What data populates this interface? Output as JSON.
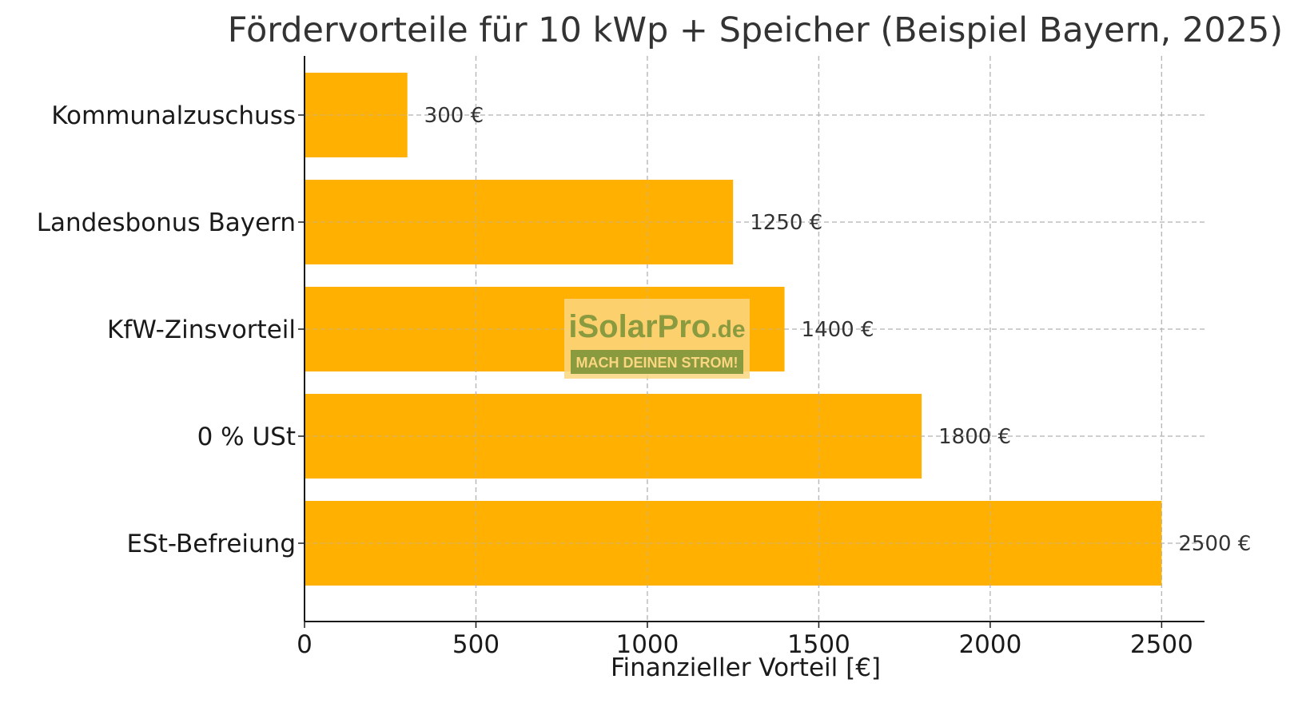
{
  "chart_data": {
    "type": "bar",
    "orientation": "horizontal",
    "title": "Fördervorteile für 10 kWp + Speicher (Beispiel Bayern, 2025)",
    "xlabel": "Finanzieller Vorteil [€]",
    "ylabel": "",
    "categories": [
      "Kommunalzuschuss",
      "Landesbonus Bayern",
      "KfW-Zinsvorteil",
      "0 % USt",
      "ESt-Befreiung"
    ],
    "values": [
      300,
      1250,
      1400,
      1800,
      2500
    ],
    "value_labels": [
      "300 €",
      "1250 €",
      "1400 €",
      "1800 €",
      "2500 €"
    ],
    "xticks": [
      0,
      500,
      1000,
      1500,
      2000,
      2500
    ],
    "xtick_labels": [
      "0",
      "500",
      "1000",
      "1500",
      "2000",
      "2500"
    ],
    "xlim": [
      0,
      2625
    ],
    "grid": true,
    "bar_color": "#FFB000",
    "legend": "none"
  },
  "watermark": {
    "brand_main": "iSolarPro",
    "brand_suffix": ".de",
    "slogan": "MACH DEINEN STROM!",
    "colors": {
      "background": "#FAD680",
      "brand": "#8A9A3E",
      "slogan_bg": "#8A9A3E",
      "slogan_text": "#FAD680"
    }
  }
}
